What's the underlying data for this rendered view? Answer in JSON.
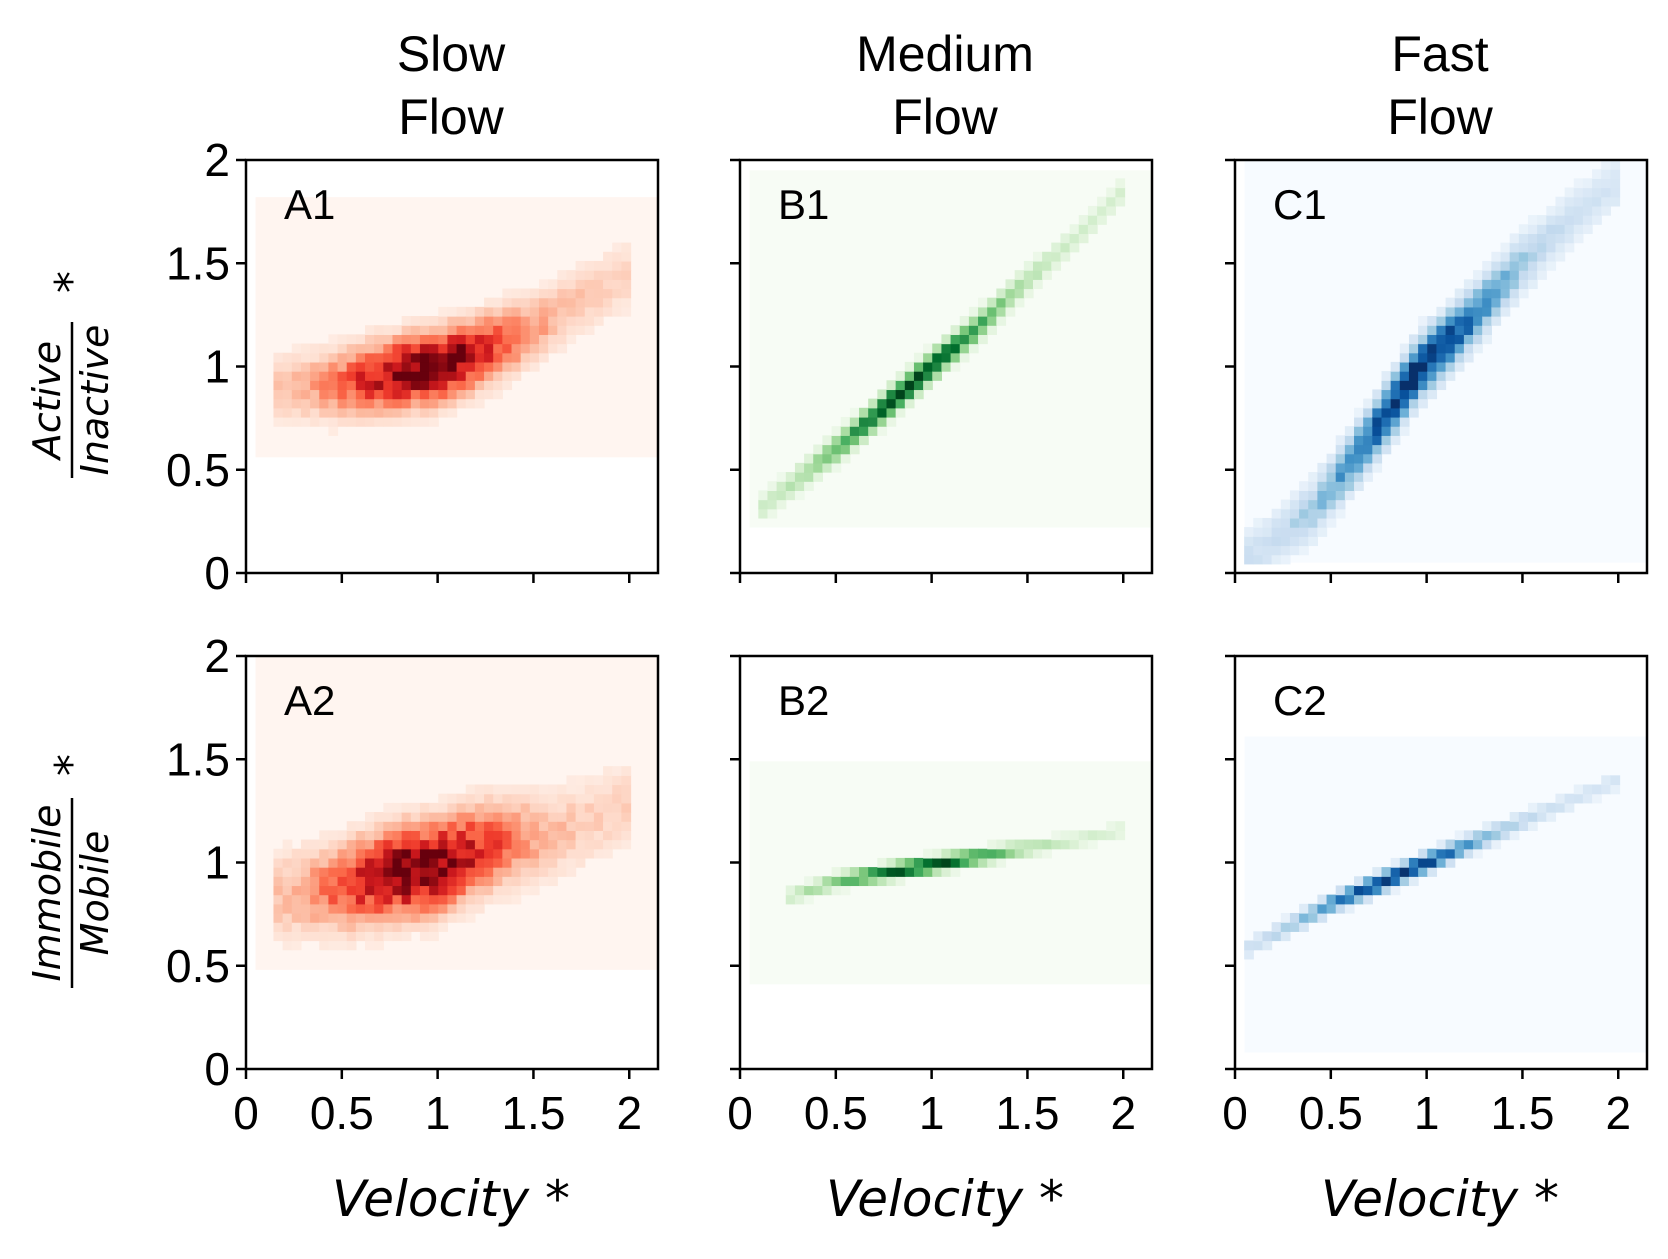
{
  "columns": [
    {
      "title_line1": "Slow",
      "title_line2": "Flow"
    },
    {
      "title_line1": "Medium",
      "title_line2": "Flow"
    },
    {
      "title_line1": "Fast",
      "title_line2": "Flow"
    }
  ],
  "colors": {
    "slow": "#cb181d",
    "medium": "#006d2c",
    "fast": "#08519c",
    "slow_bg": "#fff5f0",
    "medium_bg": "#f7fcf5",
    "fast_bg": "#f7fbff"
  },
  "rows": [
    {
      "ylabel_numerator": "Active",
      "ylabel_denominator": "Inactive",
      "ylabel_star": "*"
    },
    {
      "ylabel_numerator": "Immobile",
      "ylabel_denominator": "Mobile",
      "ylabel_star": "*"
    }
  ],
  "xlabel": "Velocity *",
  "chart_data": [
    {
      "type": "heatmap",
      "panel": "A1",
      "colormap": "Reds",
      "xlim": [
        0,
        2.15
      ],
      "ylim": [
        0,
        2
      ],
      "xticks": [
        "0",
        "0.5",
        "1",
        "1.5",
        "2"
      ],
      "yticks": [
        "0",
        "0.5",
        "1",
        "1.5",
        "2"
      ],
      "x_range": [
        0.05,
        2.15
      ],
      "y_range": [
        0.56,
        1.82
      ],
      "density_trend": {
        "x": [
          0.25,
          0.5,
          0.75,
          1.0,
          1.25,
          1.5,
          1.75,
          2.0
        ],
        "y": [
          0.9,
          0.92,
          0.96,
          1.0,
          1.08,
          1.18,
          1.32,
          1.45
        ]
      },
      "peak": {
        "x": 0.95,
        "y": 0.98
      }
    },
    {
      "type": "heatmap",
      "panel": "B1",
      "colormap": "Greens",
      "xlim": [
        0,
        2.15
      ],
      "ylim": [
        0,
        2
      ],
      "xticks": [
        "0",
        "0.5",
        "1",
        "1.5",
        "2"
      ],
      "yticks": [
        "0",
        "0.5",
        "1",
        "1.5",
        "2"
      ],
      "x_range": [
        0.05,
        2.15
      ],
      "y_range": [
        0.22,
        1.95
      ],
      "density_trend": {
        "x": [
          0.2,
          0.5,
          0.75,
          1.0,
          1.25,
          1.5,
          1.75,
          2.0
        ],
        "y": [
          0.38,
          0.6,
          0.8,
          1.0,
          1.2,
          1.42,
          1.62,
          1.85
        ]
      },
      "peak": {
        "x": 0.9,
        "y": 0.93
      }
    },
    {
      "type": "heatmap",
      "panel": "C1",
      "colormap": "Blues",
      "xlim": [
        0,
        2.15
      ],
      "ylim": [
        0,
        2
      ],
      "xticks": [
        "0",
        "0.5",
        "1",
        "1.5",
        "2"
      ],
      "yticks": [
        "0",
        "0.5",
        "1",
        "1.5",
        "2"
      ],
      "x_range": [
        0.05,
        2.15
      ],
      "y_range": [
        0.05,
        2.0
      ],
      "density_trend": {
        "x": [
          0.1,
          0.4,
          0.7,
          0.95,
          1.2,
          1.5,
          1.8,
          2.0
        ],
        "y": [
          0.1,
          0.3,
          0.65,
          0.98,
          1.2,
          1.5,
          1.75,
          1.9
        ]
      },
      "peak": {
        "x": 0.95,
        "y": 0.98
      }
    },
    {
      "type": "heatmap",
      "panel": "A2",
      "colormap": "Reds",
      "xlim": [
        0,
        2.15
      ],
      "ylim": [
        0,
        2
      ],
      "xticks": [
        "0",
        "0.5",
        "1",
        "1.5",
        "2"
      ],
      "yticks": [
        "0",
        "0.5",
        "1",
        "1.5",
        "2"
      ],
      "x_range": [
        0.05,
        2.15
      ],
      "y_range": [
        0.48,
        2.0
      ],
      "density_trend": {
        "x": [
          0.25,
          0.5,
          0.75,
          1.0,
          1.25,
          1.5,
          1.75,
          2.0
        ],
        "y": [
          0.85,
          0.88,
          0.95,
          0.98,
          1.08,
          1.12,
          1.18,
          1.3
        ]
      },
      "peak": {
        "x": 0.9,
        "y": 0.97
      }
    },
    {
      "type": "heatmap",
      "panel": "B2",
      "colormap": "Greens",
      "xlim": [
        0,
        2.15
      ],
      "ylim": [
        0,
        2
      ],
      "xticks": [
        "0",
        "0.5",
        "1",
        "1.5",
        "2"
      ],
      "yticks": [
        "0",
        "0.5",
        "1",
        "1.5",
        "2"
      ],
      "x_range": [
        0.05,
        2.15
      ],
      "y_range": [
        0.41,
        1.49
      ],
      "density_trend": {
        "x": [
          0.3,
          0.5,
          0.75,
          1.0,
          1.25,
          1.5,
          1.75,
          2.0
        ],
        "y": [
          0.85,
          0.91,
          0.95,
          0.99,
          1.03,
          1.07,
          1.11,
          1.16
        ]
      },
      "peak": {
        "x": 0.95,
        "y": 0.98
      }
    },
    {
      "type": "heatmap",
      "panel": "C2",
      "colormap": "Blues",
      "xlim": [
        0,
        2.15
      ],
      "ylim": [
        0,
        2
      ],
      "xticks": [
        "0",
        "0.5",
        "1",
        "1.5",
        "2"
      ],
      "yticks": [
        "0",
        "0.5",
        "1",
        "1.5",
        "2"
      ],
      "x_range": [
        0.05,
        2.15
      ],
      "y_range": [
        0.08,
        1.61
      ],
      "density_trend": {
        "x": [
          0.1,
          0.3,
          0.5,
          0.75,
          1.0,
          1.25,
          1.5,
          1.75,
          2.0
        ],
        "y": [
          0.6,
          0.7,
          0.8,
          0.9,
          1.0,
          1.1,
          1.2,
          1.3,
          1.4
        ]
      },
      "peak": {
        "x": 0.85,
        "y": 0.95
      }
    }
  ]
}
